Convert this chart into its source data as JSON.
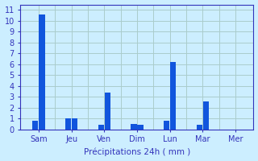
{
  "days": [
    "Sam",
    "Jeu",
    "Ven",
    "Dim",
    "Lun",
    "Mar",
    "Mer"
  ],
  "values": [
    [
      0.8,
      10.6
    ],
    [
      1.0,
      1.0
    ],
    [
      0.4,
      3.4
    ],
    [
      0.5,
      0.4
    ],
    [
      0.8,
      6.2
    ],
    [
      0.4,
      2.6
    ],
    [
      0.0,
      0.0
    ]
  ],
  "bar_color": "#1155dd",
  "background_color": "#cceeff",
  "grid_color": "#aacccc",
  "axis_color": "#3333bb",
  "text_color": "#3333bb",
  "xlabel": "Précipitations 24h ( mm )",
  "ylim": [
    0,
    11.5
  ],
  "yticks": [
    0,
    1,
    2,
    3,
    4,
    5,
    6,
    7,
    8,
    9,
    10,
    11
  ],
  "bar_width": 0.18,
  "label_fontsize": 7.5,
  "tick_fontsize": 7.0
}
